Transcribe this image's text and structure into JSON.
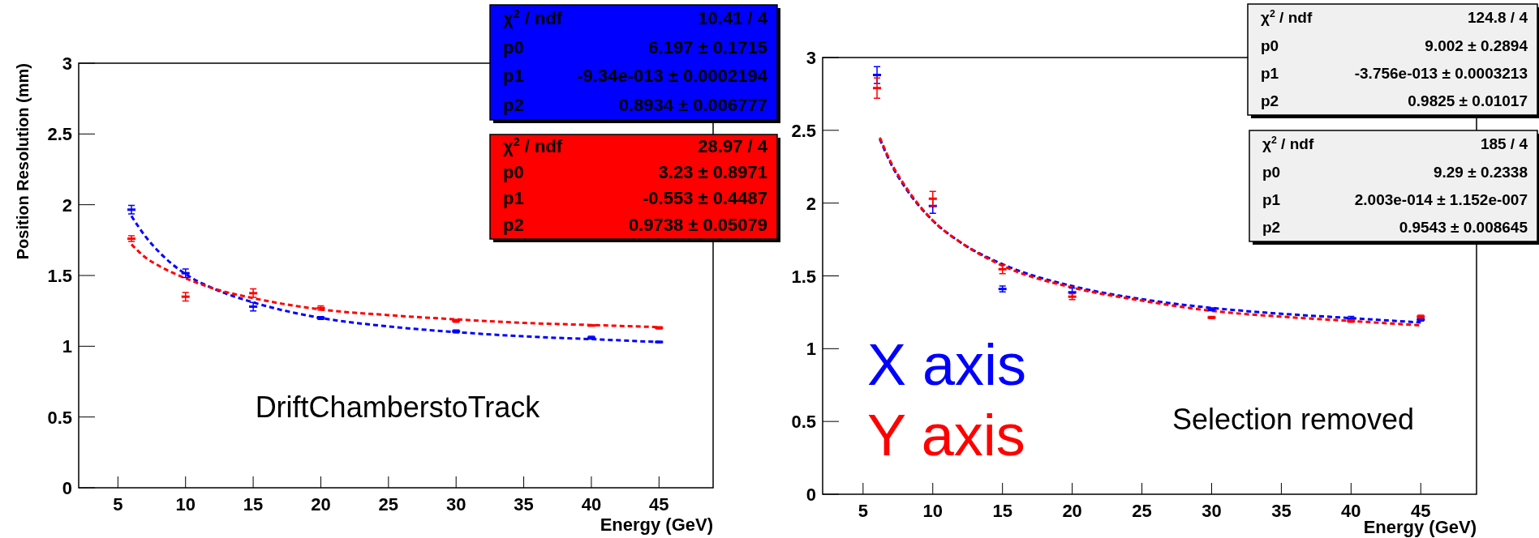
{
  "chart_data": [
    {
      "type": "scatter",
      "ylabel": "Position Resolution (mm)",
      "xlabel": "Energy (GeV)",
      "xlim": [
        2.1,
        49
      ],
      "xticks": [
        5,
        10,
        15,
        20,
        25,
        30,
        35,
        40,
        45
      ],
      "ylim": [
        0,
        3
      ],
      "yticks": [
        0,
        0.5,
        1,
        1.5,
        2,
        2.5,
        3
      ],
      "grid": false,
      "line_style": "dashed",
      "annotations": [
        "χ$^{2}$ / ndf",
        "10.41 / 4",
        "p0",
        "6.197 ± 0.1715",
        "p1",
        "-9.34e-013 ± 0.0002194",
        "p2",
        "0.8934 ± 0.006777",
        "χ$^{2}$ / ndf",
        "28.97 / 4",
        "p0",
        "3.23 ± 0.8971",
        "p1",
        "-0.553 ± 0.4487",
        "p2",
        "0.9738 ± 0.05079",
        "DriftChamberstoTrack"
      ],
      "series": [
        {
          "color": "#0000ff",
          "x": [
            6,
            10,
            15,
            20,
            30,
            40,
            45
          ],
          "values": [
            1.965,
            1.516,
            1.28,
            1.2,
            1.105,
            1.06,
            1.03
          ],
          "errors": [
            0.03,
            0.03,
            0.03,
            0.01,
            0.01,
            0.01,
            0.005
          ]
        },
        {
          "color": "#ff0000",
          "x": [
            6,
            10,
            15,
            20,
            30,
            40,
            45
          ],
          "values": [
            1.76,
            1.35,
            1.375,
            1.27,
            1.18,
            1.147,
            1.13
          ],
          "errors": [
            0.02,
            0.03,
            0.03,
            0.015,
            0.01,
            0.005,
            0.008
          ]
        },
        {
          "type": "line",
          "color": "#0000ff",
          "x": [
            6,
            7,
            8,
            10,
            12,
            15,
            20,
            25,
            30,
            35,
            40,
            45
          ],
          "values": [
            1.92,
            1.78,
            1.67,
            1.51,
            1.41,
            1.31,
            1.2,
            1.14,
            1.1,
            1.07,
            1.05,
            1.03
          ]
        },
        {
          "type": "line",
          "color": "#ff0000",
          "x": [
            6,
            7,
            8,
            10,
            12,
            15,
            20,
            25,
            30,
            35,
            40,
            45
          ],
          "values": [
            1.72,
            1.63,
            1.57,
            1.48,
            1.41,
            1.34,
            1.26,
            1.22,
            1.19,
            1.165,
            1.15,
            1.135
          ]
        }
      ]
    },
    {
      "type": "scatter",
      "xlabel": "Energy (GeV)",
      "xlim": [
        2.1,
        49
      ],
      "xticks": [
        5,
        10,
        15,
        20,
        25,
        30,
        35,
        40,
        45
      ],
      "ylim": [
        0,
        3
      ],
      "yticks": [
        0,
        0.5,
        1,
        1.5,
        2,
        2.5,
        3
      ],
      "grid": false,
      "line_style": "dashed",
      "legend": "bottom left",
      "annotations": [
        "χ$^{2}$ / ndf",
        "124.8 / 4",
        "p0",
        "9.002 ± 0.2894",
        "p1",
        "-3.756e-013 ± 0.0003213",
        "p2",
        "0.9825 ± 0.01017",
        "χ$^{2}$ / ndf",
        "185 / 4",
        "p0",
        "9.29 ± 0.2338",
        "p1",
        "2.003e-014 ± 1.152e-007",
        "p2",
        "0.9543 ± 0.008645",
        "Selection removed"
      ],
      "series": [
        {
          "name": "X axis",
          "color": "#0000ff",
          "x": [
            6,
            10,
            15,
            20,
            30,
            40,
            45
          ],
          "values": [
            2.88,
            1.98,
            1.41,
            1.387,
            1.27,
            1.207,
            1.2
          ],
          "errors": [
            0.058,
            0.05,
            0.02,
            0.03,
            0.01,
            0.015,
            0.01
          ]
        },
        {
          "name": "Y axis",
          "color": "#ff0000",
          "x": [
            6,
            10,
            15,
            20,
            30,
            40,
            45
          ],
          "values": [
            2.79,
            2.03,
            1.546,
            1.357,
            1.214,
            1.19,
            1.22
          ],
          "errors": [
            0.07,
            0.05,
            0.03,
            0.02,
            0.008,
            0.008,
            0.01
          ]
        },
        {
          "type": "line",
          "color": "#0000ff",
          "x": [
            6.2,
            7,
            8,
            10,
            12,
            15,
            20,
            25,
            30,
            35,
            40,
            45
          ],
          "values": [
            2.44,
            2.27,
            2.11,
            1.88,
            1.73,
            1.58,
            1.43,
            1.34,
            1.28,
            1.24,
            1.21,
            1.18
          ]
        },
        {
          "type": "line",
          "color": "#ff0000",
          "x": [
            6.2,
            7,
            8,
            10,
            12,
            15,
            20,
            25,
            30,
            35,
            40,
            45
          ],
          "values": [
            2.45,
            2.28,
            2.12,
            1.88,
            1.73,
            1.57,
            1.42,
            1.33,
            1.26,
            1.22,
            1.19,
            1.16
          ]
        }
      ]
    }
  ]
}
